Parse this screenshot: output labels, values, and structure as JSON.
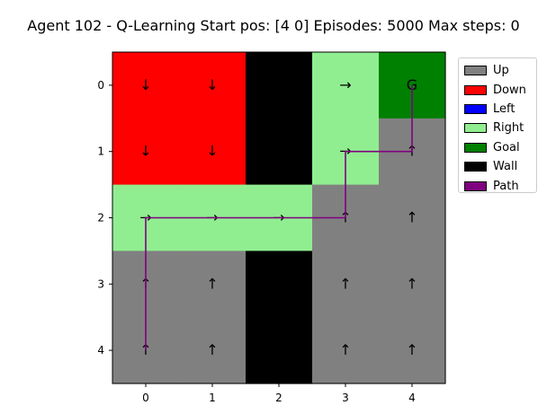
{
  "chart_data": {
    "type": "heatmap",
    "title": "Agent 102 - Q-Learning  Start pos: [4 0]  Episodes: 5000  Max steps: 0",
    "xlabel": "",
    "ylabel": "",
    "x_ticks": [
      "0",
      "1",
      "2",
      "3",
      "4"
    ],
    "y_ticks": [
      "0",
      "1",
      "2",
      "3",
      "4"
    ],
    "xlim": [
      -0.5,
      4.5
    ],
    "ylim": [
      4.5,
      -0.5
    ],
    "grid": false,
    "legend_position": "outside-right",
    "cells": [
      [
        "Down",
        "Down",
        "Wall",
        "Right",
        "Goal"
      ],
      [
        "Down",
        "Down",
        "Wall",
        "Right",
        "Up"
      ],
      [
        "Right",
        "Right",
        "Right",
        "Up",
        "Up"
      ],
      [
        "Up",
        "Up",
        "Wall",
        "Up",
        "Up"
      ],
      [
        "Up",
        "Up",
        "Wall",
        "Up",
        "Up"
      ]
    ],
    "goal_label": "G",
    "arrow_glyphs": {
      "Up": "↑",
      "Down": "↓",
      "Left": "←",
      "Right": "→"
    },
    "path": [
      {
        "col": 0,
        "row": 4
      },
      {
        "col": 0,
        "row": 3
      },
      {
        "col": 0,
        "row": 2
      },
      {
        "col": 1,
        "row": 2
      },
      {
        "col": 2,
        "row": 2
      },
      {
        "col": 3,
        "row": 2
      },
      {
        "col": 3,
        "row": 1
      },
      {
        "col": 4,
        "row": 1
      },
      {
        "col": 4,
        "row": 0
      }
    ],
    "legend": [
      {
        "label": "Up",
        "color": "#808080"
      },
      {
        "label": "Down",
        "color": "#ff0000"
      },
      {
        "label": "Left",
        "color": "#0000ff"
      },
      {
        "label": "Right",
        "color": "#90ee90"
      },
      {
        "label": "Goal",
        "color": "#008000"
      },
      {
        "label": "Wall",
        "color": "#000000"
      },
      {
        "label": "Path",
        "color": "#800080"
      }
    ],
    "path_color": "#800080"
  }
}
